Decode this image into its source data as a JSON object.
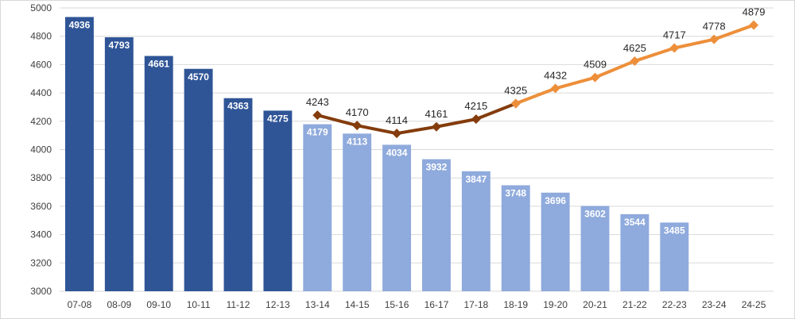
{
  "chart_data": {
    "type": "bar",
    "categories": [
      "07-08",
      "08-09",
      "09-10",
      "10-11",
      "11-12",
      "12-13",
      "13-14",
      "14-15",
      "15-16",
      "16-17",
      "17-18",
      "18-19",
      "19-20",
      "20-21",
      "21-22",
      "22-23",
      "23-24",
      "24-25"
    ],
    "ylim": [
      3000,
      5000
    ],
    "yticks": [
      3000,
      3200,
      3400,
      3600,
      3800,
      4000,
      4200,
      4400,
      4600,
      4800,
      5000
    ],
    "grid": true,
    "series": [
      {
        "type": "bar",
        "values": [
          4936,
          4793,
          4661,
          4570,
          4363,
          4275,
          4179,
          4113,
          4034,
          3932,
          3847,
          3748,
          3696,
          3602,
          3544,
          3485,
          null,
          null
        ],
        "colors": [
          "#2f5597",
          "#2f5597",
          "#2f5597",
          "#2f5597",
          "#2f5597",
          "#2f5597",
          "#8faadc",
          "#8faadc",
          "#8faadc",
          "#8faadc",
          "#8faadc",
          "#8faadc",
          "#8faadc",
          "#8faadc",
          "#8faadc",
          "#8faadc",
          "#8faadc",
          "#8faadc"
        ]
      },
      {
        "type": "line",
        "values": [
          null,
          null,
          null,
          null,
          null,
          null,
          4243,
          4170,
          4114,
          4161,
          4215,
          4325,
          null,
          null,
          null,
          null,
          null,
          null
        ],
        "color": "#843c0c"
      },
      {
        "type": "line",
        "values": [
          null,
          null,
          null,
          null,
          null,
          null,
          null,
          null,
          null,
          null,
          null,
          4325,
          4432,
          4509,
          4625,
          4717,
          4778,
          4879
        ],
        "color": "#ed8f3a"
      }
    ]
  }
}
